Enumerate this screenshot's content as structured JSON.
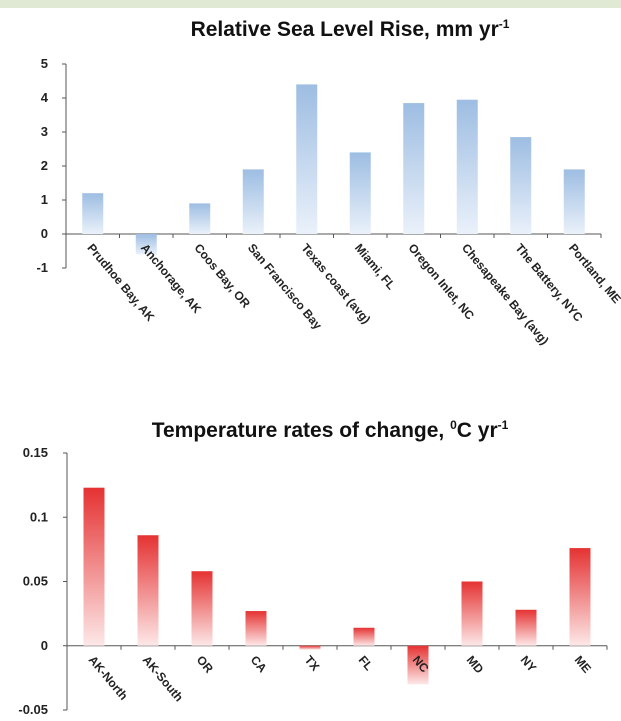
{
  "chart_data": [
    {
      "type": "bar",
      "title": "Relative Sea Level Rise, mm yr",
      "title_sup": "-1",
      "categories": [
        "Prudhoe Bay, AK",
        "Anchorage, AK",
        "Coos Bay, OR",
        "San Francisco Bay",
        "Texas coast (avg)",
        "Miami, FL",
        "Oregon Inlet, NC",
        "Chesapeake Bay (avg)",
        "The Battery, NYC",
        "Portland, ME"
      ],
      "values": [
        1.2,
        -0.6,
        0.9,
        1.9,
        4.4,
        2.4,
        3.85,
        3.95,
        2.85,
        1.9
      ],
      "yticks": [
        "5",
        "4",
        "3",
        "2",
        "1",
        "0",
        "-1"
      ],
      "ylim": [
        -1,
        5
      ],
      "grid": false,
      "legend": "none",
      "bar_color": "#9dbde2"
    },
    {
      "type": "bar",
      "title": "Temperature rates of change, ",
      "title_unit_sup": "0",
      "title_unit": "C yr",
      "title_sup": "-1",
      "categories": [
        "AK-North",
        "AK-South",
        "OR",
        "CA",
        "TX",
        "FL",
        "NC",
        "MD",
        "NY",
        "ME"
      ],
      "values": [
        0.123,
        0.086,
        0.058,
        0.027,
        -0.003,
        0.014,
        -0.03,
        0.05,
        0.028,
        0.076
      ],
      "yticks": [
        "0.15",
        "0.1",
        "0.05",
        "0",
        "-0.05"
      ],
      "ylim": [
        -0.05,
        0.15
      ],
      "grid": false,
      "legend": "none",
      "bar_color": "#e53232"
    }
  ]
}
